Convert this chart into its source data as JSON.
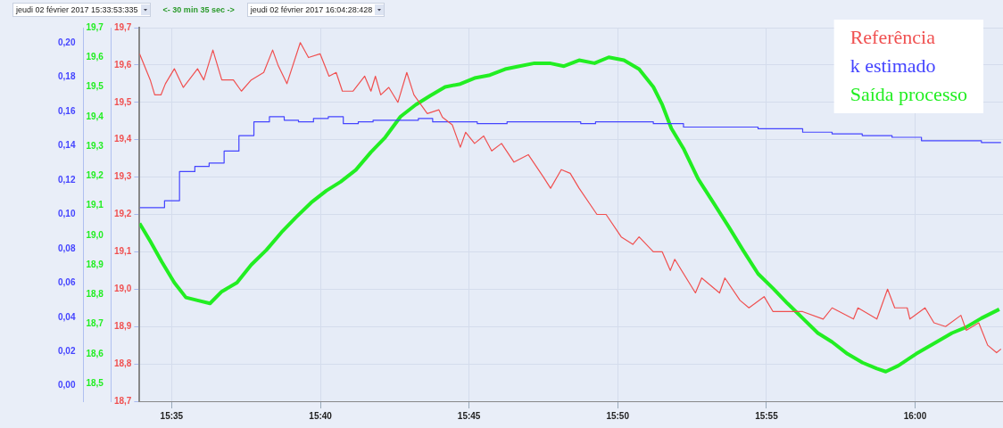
{
  "chart_data": {
    "type": "line",
    "annotations": [
      "jeudi 02 février 2017 15:33:53:335",
      "<- 30 min 35 sec ->",
      "jeudi 02 février 2017 16:04:28:428"
    ],
    "xlim": [
      15.5653,
      16.0493
    ],
    "xticks": [
      {
        "value": 15.5833,
        "label": "15:35"
      },
      {
        "value": 15.6667,
        "label": "15:40"
      },
      {
        "value": 15.75,
        "label": "15:45"
      },
      {
        "value": 15.8333,
        "label": "15:50"
      },
      {
        "value": 15.9167,
        "label": "15:55"
      },
      {
        "value": 16.0,
        "label": "16:00"
      }
    ],
    "ylim": [
      18.7,
      19.7
    ],
    "yticks": [
      {
        "value": 18.7,
        "label": "18,7"
      },
      {
        "value": 18.8,
        "label": "18,8"
      },
      {
        "value": 18.9,
        "label": "18,9"
      },
      {
        "value": 19.0,
        "label": "19,0"
      },
      {
        "value": 19.1,
        "label": "19,1"
      },
      {
        "value": 19.2,
        "label": "19,2"
      },
      {
        "value": 19.3,
        "label": "19,3"
      },
      {
        "value": 19.4,
        "label": "19,4"
      },
      {
        "value": 19.5,
        "label": "19,5"
      },
      {
        "value": 19.6,
        "label": "19,6"
      },
      {
        "value": 19.7,
        "label": "19,7"
      }
    ],
    "y2lim": [
      -0.009,
      0.209
    ],
    "y2ticks": [
      {
        "value": 0,
        "label": "0,00"
      },
      {
        "value": 0.02,
        "label": "0,02"
      },
      {
        "value": 0.04,
        "label": "0,04"
      },
      {
        "value": 0.06,
        "label": "0,06"
      },
      {
        "value": 0.08,
        "label": "0,08"
      },
      {
        "value": 0.1,
        "label": "0,10"
      },
      {
        "value": 0.12,
        "label": "0,12"
      },
      {
        "value": 0.14,
        "label": "0,14"
      },
      {
        "value": 0.16,
        "label": "0,16"
      },
      {
        "value": 0.18,
        "label": "0,18"
      },
      {
        "value": 0.2,
        "label": "0,20"
      }
    ],
    "y3lim": [
      18.44,
      19.7
    ],
    "y3ticks": [
      {
        "value": 18.5,
        "label": "18,5"
      },
      {
        "value": 18.6,
        "label": "18,6"
      },
      {
        "value": 18.7,
        "label": "18,7"
      },
      {
        "value": 18.8,
        "label": "18,8"
      },
      {
        "value": 18.9,
        "label": "18,9"
      },
      {
        "value": 19.0,
        "label": "19,0"
      },
      {
        "value": 19.1,
        "label": "19,1"
      },
      {
        "value": 19.2,
        "label": "19,2"
      },
      {
        "value": 19.3,
        "label": "19,3"
      },
      {
        "value": 19.4,
        "label": "19,4"
      },
      {
        "value": 19.5,
        "label": "19,5"
      },
      {
        "value": 19.6,
        "label": "19,6"
      },
      {
        "value": 19.7,
        "label": "19,7"
      }
    ],
    "grid": true,
    "legend": "top right",
    "series": [
      {
        "name": "Referência",
        "color": "#f05050",
        "axis": "y",
        "x": [
          15.5653,
          15.5713,
          15.5738,
          15.5773,
          15.5798,
          15.5848,
          15.5898,
          15.5978,
          15.6013,
          15.6064,
          15.6114,
          15.6179,
          15.6224,
          15.6279,
          15.6349,
          15.6399,
          15.6429,
          15.6479,
          15.6554,
          15.66,
          15.6665,
          15.6715,
          15.6755,
          15.679,
          15.685,
          15.6915,
          15.695,
          15.6975,
          15.7005,
          15.705,
          15.7101,
          15.7151,
          15.7191,
          15.7266,
          15.7331,
          15.7351,
          15.7406,
          15.7451,
          15.7481,
          15.7531,
          15.7582,
          15.7627,
          15.7682,
          15.7752,
          15.7832,
          15.7917,
          15.7957,
          15.8017,
          15.8067,
          15.8117,
          15.8217,
          15.8268,
          15.8353,
          15.8418,
          15.8453,
          15.8533,
          15.8583,
          15.8628,
          15.8653,
          15.8769,
          15.8804,
          15.8904,
          15.8934,
          15.9019,
          15.9069,
          15.9154,
          15.9204,
          15.937,
          15.9485,
          15.9535,
          15.9655,
          15.968,
          15.9786,
          15.9846,
          15.9886,
          15.9956,
          15.9971,
          16.0056,
          16.0106,
          16.0171,
          16.0257,
          16.0287,
          16.0357,
          16.0407,
          16.0457,
          16.0482
        ],
        "values": [
          19.63,
          19.56,
          19.52,
          19.52,
          19.55,
          19.59,
          19.54,
          19.59,
          19.56,
          19.64,
          19.56,
          19.56,
          19.53,
          19.56,
          19.58,
          19.64,
          19.6,
          19.55,
          19.66,
          19.62,
          19.63,
          19.57,
          19.58,
          19.53,
          19.53,
          19.57,
          19.53,
          19.57,
          19.52,
          19.54,
          19.5,
          19.58,
          19.52,
          19.47,
          19.48,
          19.46,
          19.44,
          19.38,
          19.42,
          19.39,
          19.41,
          19.37,
          19.39,
          19.34,
          19.36,
          19.3,
          19.27,
          19.32,
          19.31,
          19.27,
          19.2,
          19.2,
          19.14,
          19.12,
          19.14,
          19.1,
          19.1,
          19.05,
          19.08,
          18.99,
          19.03,
          18.99,
          19.03,
          18.97,
          18.95,
          18.98,
          18.94,
          18.94,
          18.92,
          18.95,
          18.92,
          18.95,
          18.92,
          19.0,
          18.95,
          18.95,
          18.92,
          18.95,
          18.91,
          18.9,
          18.93,
          18.89,
          18.91,
          18.85,
          18.83,
          18.84
        ]
      },
      {
        "name": "k estimado",
        "color": "#4444ff",
        "axis": "y2",
        "type": "step",
        "x": [
          15.5654,
          15.5793,
          15.5877,
          15.5963,
          15.6043,
          15.6127,
          15.621,
          15.6294,
          15.6381,
          15.6464,
          15.6544,
          15.6628,
          15.6711,
          15.6795,
          15.6879,
          15.6962,
          15.7216,
          15.7296,
          15.7546,
          15.7713,
          15.7797,
          15.8126,
          15.8209,
          15.8533,
          15.8702,
          15.912,
          15.937,
          15.9535,
          15.9704,
          15.9871,
          16.0036,
          16.0372,
          16.0482
        ],
        "values": [
          0.104,
          0.108,
          0.125,
          0.128,
          0.13,
          0.137,
          0.146,
          0.154,
          0.157,
          0.155,
          0.154,
          0.156,
          0.157,
          0.153,
          0.154,
          0.155,
          0.156,
          0.154,
          0.153,
          0.154,
          0.154,
          0.153,
          0.154,
          0.153,
          0.151,
          0.15,
          0.148,
          0.147,
          0.146,
          0.145,
          0.143,
          0.142,
          0.142
        ]
      },
      {
        "name": "Saída processo",
        "color": "#22ee22",
        "axis": "y3",
        "x": [
          15.5653,
          15.5713,
          15.5778,
          15.5848,
          15.5913,
          15.5978,
          15.6048,
          15.6114,
          15.6199,
          15.6279,
          15.6364,
          15.6449,
          15.6529,
          15.6615,
          15.67,
          15.678,
          15.6865,
          15.695,
          15.703,
          15.7116,
          15.7201,
          15.7281,
          15.7366,
          15.7451,
          15.7531,
          15.7617,
          15.7702,
          15.7782,
          15.7867,
          15.7952,
          15.8032,
          15.8117,
          15.8203,
          15.8283,
          15.8368,
          15.8453,
          15.8533,
          15.8583,
          15.8634,
          15.8704,
          15.8784,
          15.8869,
          15.8954,
          15.9035,
          15.912,
          15.9205,
          15.9285,
          15.937,
          15.9455,
          15.9535,
          15.9621,
          15.9706,
          15.9786,
          15.9836,
          15.9906,
          16.0006,
          16.0121,
          16.0207,
          16.0287,
          16.0372,
          16.0472
        ],
        "values": [
          19.04,
          18.98,
          18.91,
          18.84,
          18.79,
          18.78,
          18.77,
          18.81,
          18.84,
          18.9,
          18.95,
          19.01,
          19.06,
          19.11,
          19.15,
          19.18,
          19.22,
          19.28,
          19.33,
          19.4,
          19.44,
          19.47,
          19.5,
          19.51,
          19.53,
          19.54,
          19.56,
          19.57,
          19.58,
          19.58,
          19.57,
          19.59,
          19.58,
          19.6,
          19.59,
          19.56,
          19.5,
          19.44,
          19.36,
          19.29,
          19.19,
          19.11,
          19.03,
          18.95,
          18.87,
          18.82,
          18.77,
          18.72,
          18.67,
          18.64,
          18.6,
          18.57,
          18.55,
          18.54,
          18.56,
          18.6,
          18.64,
          18.67,
          18.69,
          18.72,
          18.75
        ]
      }
    ]
  }
}
